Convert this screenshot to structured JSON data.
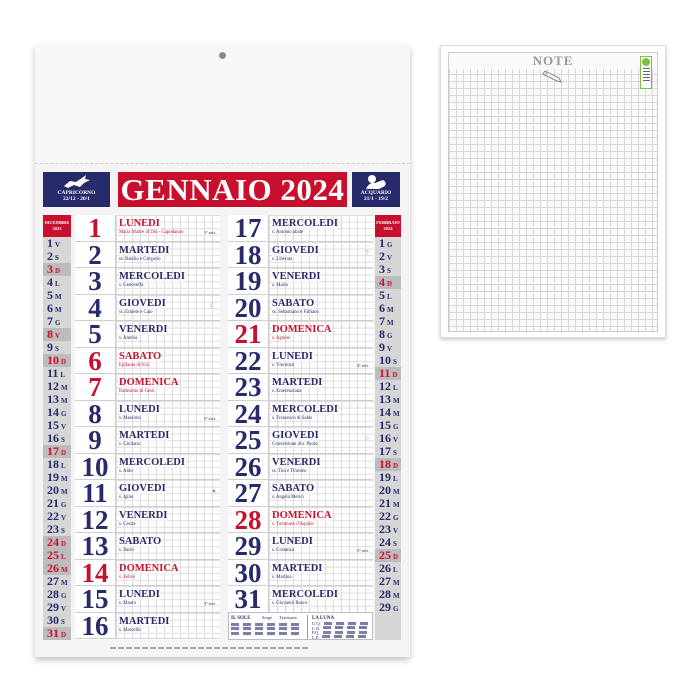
{
  "calendar": {
    "title": "GENNAIO 2024",
    "zodiac_left": {
      "name": "CAPRICORNO",
      "range": "22/12 - 20/1",
      "icon": "capricorn-icon"
    },
    "zodiac_right": {
      "name": "ACQUARIO",
      "range": "21/1 - 19/2",
      "icon": "aquarius-icon"
    },
    "prev_month": {
      "label": "DICEMBRE",
      "year": "2023",
      "days": [
        [
          "1",
          "V",
          0
        ],
        [
          "2",
          "S",
          0
        ],
        [
          "3",
          "D",
          1
        ],
        [
          "4",
          "L",
          0
        ],
        [
          "5",
          "M",
          0
        ],
        [
          "6",
          "M",
          0
        ],
        [
          "7",
          "G",
          0
        ],
        [
          "8",
          "V",
          1
        ],
        [
          "9",
          "S",
          0
        ],
        [
          "10",
          "D",
          1
        ],
        [
          "11",
          "L",
          0
        ],
        [
          "12",
          "M",
          0
        ],
        [
          "13",
          "M",
          0
        ],
        [
          "14",
          "G",
          0
        ],
        [
          "15",
          "V",
          0
        ],
        [
          "16",
          "S",
          0
        ],
        [
          "17",
          "D",
          1
        ],
        [
          "18",
          "L",
          0
        ],
        [
          "19",
          "M",
          0
        ],
        [
          "20",
          "M",
          0
        ],
        [
          "21",
          "G",
          0
        ],
        [
          "22",
          "V",
          0
        ],
        [
          "23",
          "S",
          0
        ],
        [
          "24",
          "D",
          1
        ],
        [
          "25",
          "L",
          1
        ],
        [
          "26",
          "M",
          1
        ],
        [
          "27",
          "M",
          0
        ],
        [
          "28",
          "G",
          0
        ],
        [
          "29",
          "V",
          0
        ],
        [
          "30",
          "S",
          0
        ],
        [
          "31",
          "D",
          1
        ]
      ]
    },
    "next_month": {
      "label": "FEBBRAIO",
      "year": "2024",
      "days": [
        [
          "1",
          "G",
          0
        ],
        [
          "2",
          "V",
          0
        ],
        [
          "3",
          "S",
          0
        ],
        [
          "4",
          "D",
          1
        ],
        [
          "5",
          "L",
          0
        ],
        [
          "6",
          "M",
          0
        ],
        [
          "7",
          "M",
          0
        ],
        [
          "8",
          "G",
          0
        ],
        [
          "9",
          "V",
          0
        ],
        [
          "10",
          "S",
          0
        ],
        [
          "11",
          "D",
          1
        ],
        [
          "12",
          "L",
          0
        ],
        [
          "13",
          "M",
          0
        ],
        [
          "14",
          "M",
          0
        ],
        [
          "15",
          "G",
          0
        ],
        [
          "16",
          "V",
          0
        ],
        [
          "17",
          "S",
          0
        ],
        [
          "18",
          "D",
          1
        ],
        [
          "19",
          "L",
          0
        ],
        [
          "20",
          "M",
          0
        ],
        [
          "21",
          "M",
          0
        ],
        [
          "22",
          "G",
          0
        ],
        [
          "23",
          "V",
          0
        ],
        [
          "24",
          "S",
          0
        ],
        [
          "25",
          "D",
          1
        ],
        [
          "26",
          "L",
          0
        ],
        [
          "27",
          "M",
          0
        ],
        [
          "28",
          "M",
          0
        ],
        [
          "29",
          "G",
          0
        ]
      ]
    },
    "days": [
      {
        "n": "1",
        "wd": "LUNEDI",
        "saint": "Maria Madre di Dio - Capodanno",
        "week": "1ª sett.",
        "red": true
      },
      {
        "n": "2",
        "wd": "MARTEDI",
        "saint": "ss. Basilio e Gregorio"
      },
      {
        "n": "3",
        "wd": "MERCOLEDI",
        "saint": "s. Genoveffa"
      },
      {
        "n": "4",
        "wd": "GIOVEDI",
        "saint": "ss. Ermete e Caio",
        "moon": "☾"
      },
      {
        "n": "5",
        "wd": "VENERDI",
        "saint": "s. Amelia"
      },
      {
        "n": "6",
        "wd": "SABATO",
        "saint": "Epifania di N.S.",
        "red": true
      },
      {
        "n": "7",
        "wd": "DOMENICA",
        "saint": "Battesimo di Gesù",
        "red": true
      },
      {
        "n": "8",
        "wd": "LUNEDI",
        "saint": "s. Massimo",
        "week": "2ª sett."
      },
      {
        "n": "9",
        "wd": "MARTEDI",
        "saint": "s. Giuliano"
      },
      {
        "n": "10",
        "wd": "MERCOLEDI",
        "saint": "s. Aldo"
      },
      {
        "n": "11",
        "wd": "GIOVEDI",
        "saint": "s. Igino",
        "moon": "●"
      },
      {
        "n": "12",
        "wd": "VENERDI",
        "saint": "s. Cesira"
      },
      {
        "n": "13",
        "wd": "SABATO",
        "saint": "s. Ilario"
      },
      {
        "n": "14",
        "wd": "DOMENICA",
        "saint": "s. Felice",
        "red": true
      },
      {
        "n": "15",
        "wd": "LUNEDI",
        "saint": "s. Mauro",
        "week": "3ª sett."
      },
      {
        "n": "16",
        "wd": "MARTEDI",
        "saint": "s. Marcello"
      },
      {
        "n": "17",
        "wd": "MERCOLEDI",
        "saint": "s. Antonio abate"
      },
      {
        "n": "18",
        "wd": "GIOVEDI",
        "saint": "s. Liberata",
        "moon": "☽"
      },
      {
        "n": "19",
        "wd": "VENERDI",
        "saint": "s. Mario"
      },
      {
        "n": "20",
        "wd": "SABATO",
        "saint": "ss. Sebastiano e Fabiano"
      },
      {
        "n": "21",
        "wd": "DOMENICA",
        "saint": "s. Agnese",
        "red": true
      },
      {
        "n": "22",
        "wd": "LUNEDI",
        "saint": "s. Vincenzo",
        "week": "4ª sett."
      },
      {
        "n": "23",
        "wd": "MARTEDI",
        "saint": "s. Emerenziana"
      },
      {
        "n": "24",
        "wd": "MERCOLEDI",
        "saint": "s. Francesco di Sales"
      },
      {
        "n": "25",
        "wd": "GIOVEDI",
        "saint": "Conversione di s. Paolo",
        "moon": "○"
      },
      {
        "n": "26",
        "wd": "VENERDI",
        "saint": "ss. Tito e Timoteo"
      },
      {
        "n": "27",
        "wd": "SABATO",
        "saint": "s. Angela Merici"
      },
      {
        "n": "28",
        "wd": "DOMENICA",
        "saint": "s. Tommaso d'Aquino",
        "red": true
      },
      {
        "n": "29",
        "wd": "LUNEDI",
        "saint": "s. Costanzo",
        "week": "5ª sett."
      },
      {
        "n": "30",
        "wd": "MARTEDI",
        "saint": "s. Martina"
      },
      {
        "n": "31",
        "wd": "MERCOLEDI",
        "saint": "s. Giovanni Bosco"
      }
    ],
    "info": {
      "sun_title": "IL SOLE",
      "rise": "Sorge",
      "set": "Tramonta",
      "moon_title": "LA LUNA",
      "phases": [
        "U.Q.",
        "L.N.",
        "P.Q.",
        "L.P."
      ]
    },
    "colors": {
      "blue": "#272a6b",
      "red": "#c8102e"
    }
  },
  "note_page": {
    "title": "NOTE",
    "icon": "pencil-icon",
    "badge": "recycle-badge"
  }
}
